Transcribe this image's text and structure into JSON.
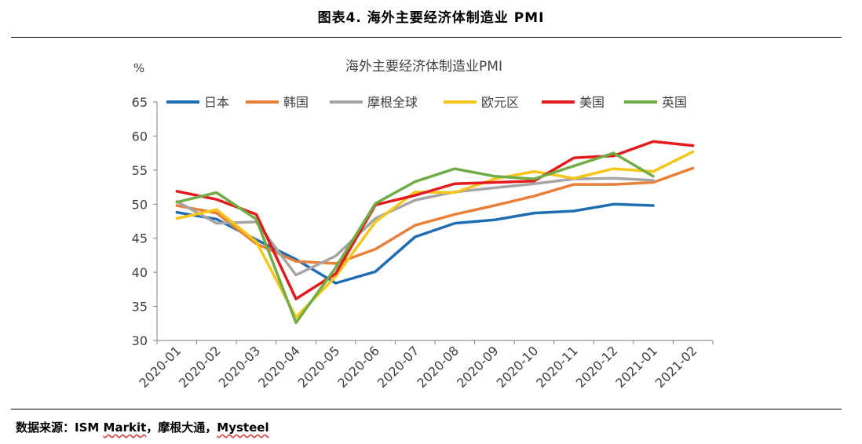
{
  "figure": {
    "title": "图表4.   海外主要经济体制造业 PMI",
    "source_prefix": "数据来源：ISM ",
    "source_markit": "Markit",
    "source_middle": "，摩根大通，",
    "source_mysteel": "Mysteel"
  },
  "chart_data": {
    "type": "line",
    "title": "海外主要经济体制造业PMI",
    "ylabel": "%",
    "xlabel": "",
    "ylim": [
      30,
      65
    ],
    "yticks": [
      30,
      35,
      40,
      45,
      50,
      55,
      60,
      65
    ],
    "grid": false,
    "legend": "top",
    "categories": [
      "2020-01",
      "2020-02",
      "2020-03",
      "2020-04",
      "2020-05",
      "2020-06",
      "2020-07",
      "2020-08",
      "2020-09",
      "2020-10",
      "2020-11",
      "2020-12",
      "2021-01",
      "2021-02"
    ],
    "series": [
      {
        "name": "日本",
        "color": "#1f6eb3",
        "values": [
          48.8,
          47.8,
          44.8,
          41.9,
          38.4,
          40.1,
          45.2,
          47.2,
          47.7,
          48.7,
          49.0,
          50.0,
          49.8,
          null
        ]
      },
      {
        "name": "韩国",
        "color": "#e8803a",
        "values": [
          49.8,
          48.7,
          44.2,
          41.6,
          41.3,
          43.4,
          46.9,
          48.5,
          49.8,
          51.2,
          52.9,
          52.9,
          53.2,
          55.3
        ]
      },
      {
        "name": "摩根全球",
        "color": "#a5a5a5",
        "values": [
          50.4,
          47.2,
          47.4,
          39.6,
          42.4,
          47.9,
          50.6,
          51.8,
          52.4,
          53.0,
          53.7,
          53.8,
          53.5,
          null
        ]
      },
      {
        "name": "欧元区",
        "color": "#f5c518",
        "values": [
          47.9,
          49.2,
          44.5,
          33.4,
          39.4,
          47.4,
          51.8,
          51.7,
          53.7,
          54.8,
          53.8,
          55.2,
          54.8,
          57.7
        ]
      },
      {
        "name": "美国",
        "color": "#e41a1c",
        "values": [
          51.9,
          50.7,
          48.5,
          36.1,
          39.8,
          49.9,
          51.3,
          53.0,
          53.2,
          53.4,
          56.8,
          57.1,
          59.2,
          58.6
        ]
      },
      {
        "name": "英国",
        "color": "#70ad47",
        "values": [
          50.3,
          51.7,
          47.8,
          32.6,
          40.7,
          50.1,
          53.3,
          55.2,
          54.1,
          53.7,
          55.6,
          57.5,
          54.1,
          null
        ]
      }
    ]
  }
}
